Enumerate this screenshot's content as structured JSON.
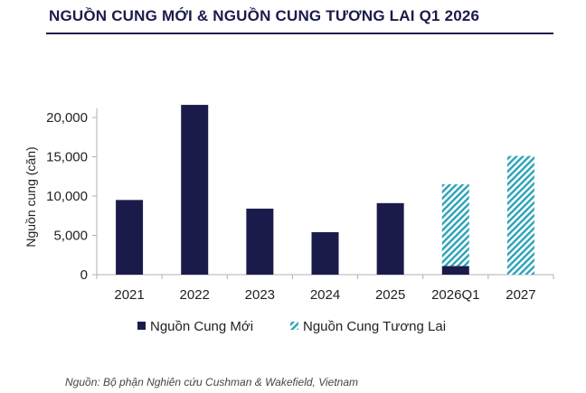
{
  "title": "NGUỒN CUNG MỚI & NGUỒN CUNG TƯƠNG LAI Q1 2026",
  "source": "Nguồn: Bộ phận Nghiên cứu Cushman & Wakefield, Vietnam",
  "colors": {
    "title": "#1b1b4b",
    "new_supply": "#1b1b4b",
    "future_supply": "#2aa3b8",
    "axis": "#b0b0b0"
  },
  "chart_data": {
    "type": "bar",
    "stacked": true,
    "categories": [
      "2021",
      "2022",
      "2023",
      "2024",
      "2025",
      "2026Q1",
      "2027"
    ],
    "series": [
      {
        "name": "Nguồn Cung Mới",
        "pattern": "solid",
        "values": [
          9500,
          21600,
          8400,
          5400,
          9100,
          1100,
          0
        ]
      },
      {
        "name": "Nguồn Cung Tương Lai",
        "pattern": "hatched",
        "values": [
          0,
          0,
          0,
          0,
          0,
          10400,
          15100
        ]
      }
    ],
    "ylabel": "Nguồn cung (căn)",
    "xlabel": "",
    "ylim": [
      0,
      20000
    ],
    "yticks": [
      0,
      5000,
      10000,
      15000,
      20000
    ],
    "ytick_labels": [
      "0",
      "5,000",
      "10,000",
      "15,000",
      "20,000"
    ],
    "grid": false,
    "legend_position": "bottom"
  }
}
